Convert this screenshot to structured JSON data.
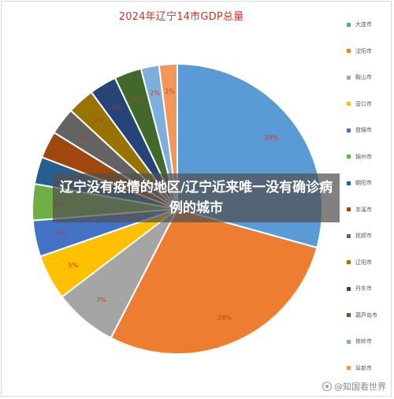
{
  "chart_data": {
    "type": "pie",
    "title": "2024年辽宁14市GDP总量",
    "legend_position": "right",
    "categories": [
      "大连市",
      "沈阳市",
      "鞍山市",
      "营口市",
      "盘锦市",
      "锦州市",
      "朝阳市",
      "本溪市",
      "抚顺市",
      "辽阳市",
      "丹东市",
      "葫芦岛市",
      "铁岭市",
      "阜新市"
    ],
    "values": [
      29,
      28,
      7,
      5,
      4,
      4,
      3,
      3,
      3,
      3,
      3,
      3,
      2,
      2
    ],
    "labels": [
      "29%",
      "28%",
      "7%",
      "5%",
      "4%",
      "4%",
      "3%",
      "3%",
      "3%",
      "3%",
      "3%",
      "3%",
      "2%",
      "2%"
    ],
    "colors": [
      "#5b9bd5",
      "#ed7d31",
      "#a5a5a5",
      "#ffc000",
      "#4472c4",
      "#70ad47",
      "#255e91",
      "#9e480e",
      "#636363",
      "#997300",
      "#264478",
      "#43682b",
      "#7cafdd",
      "#f1975a"
    ]
  },
  "banner": {
    "text": "辽宁没有疫情的地区/辽宁近来唯一没有确诊病例的城市"
  },
  "watermark": {
    "text": "@知国看世界",
    "icon": "circle-logo-icon"
  }
}
